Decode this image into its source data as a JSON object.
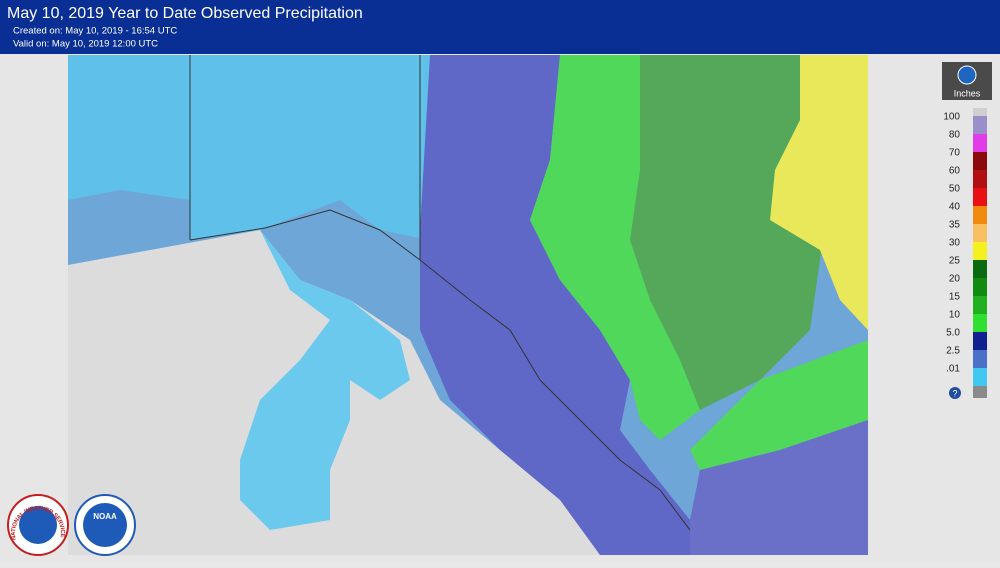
{
  "header": {
    "title": "May 10, 2019 Year to Date Observed Precipitation",
    "created": "Created on: May 10, 2019 - 16:54 UTC",
    "valid": "Valid on: May 10, 2019 12:00 UTC"
  },
  "legend": {
    "unit": "Inches",
    "items": [
      {
        "label": "100",
        "color": "#9a8fc9"
      },
      {
        "label": "80",
        "color": "#e23ce8"
      },
      {
        "label": "70",
        "color": "#8b0a0a"
      },
      {
        "label": "60",
        "color": "#b01010"
      },
      {
        "label": "50",
        "color": "#e81010"
      },
      {
        "label": "40",
        "color": "#f08a10"
      },
      {
        "label": "35",
        "color": "#f8c060"
      },
      {
        "label": "30",
        "color": "#f5f020"
      },
      {
        "label": "25",
        "color": "#0a6a10"
      },
      {
        "label": "20",
        "color": "#108a10"
      },
      {
        "label": "15",
        "color": "#20b020"
      },
      {
        "label": "10",
        "color": "#30e030"
      },
      {
        "label": "5.0",
        "color": "#102090"
      },
      {
        "label": "2.5",
        "color": "#4a70c8"
      },
      {
        "label": ".01",
        "color": "#40c8f0"
      }
    ]
  },
  "logos": {
    "nws": "NATIONAL WEATHER SERVICE",
    "noaa": "NOAA"
  }
}
